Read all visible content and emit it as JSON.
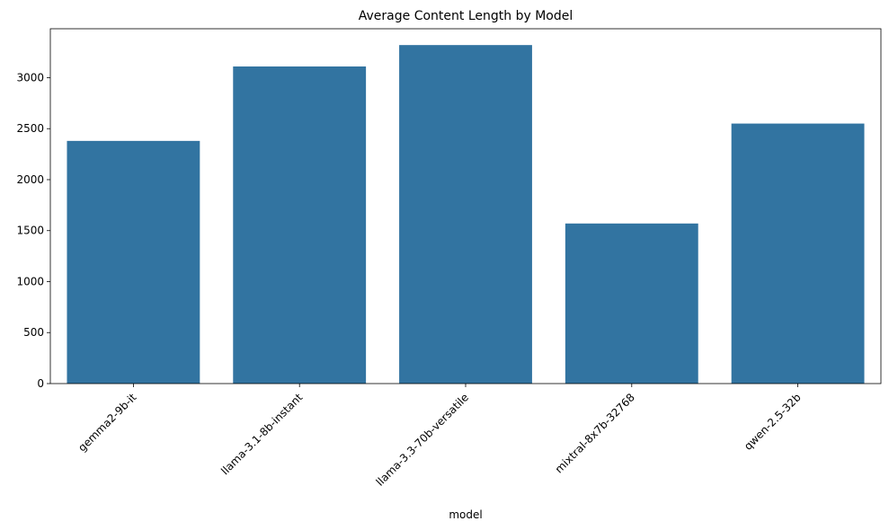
{
  "chart_data": {
    "type": "bar",
    "title": "Average Content Length by Model",
    "xlabel": "model",
    "ylabel": "",
    "categories": [
      "gemma2-9b-it",
      "llama-3.1-8b-instant",
      "llama-3.3-70b-versatile",
      "mixtral-8x7b-32768",
      "qwen-2.5-32b"
    ],
    "values": [
      2380,
      3110,
      3320,
      1570,
      2550
    ],
    "ylim": [
      0,
      3480
    ],
    "yticks": [
      0,
      500,
      1000,
      1500,
      2000,
      2500,
      3000
    ],
    "ytick_labels": [
      "0",
      "500",
      "1000",
      "1500",
      "2000",
      "2500",
      "3000"
    ],
    "bar_color": "#3274a1",
    "grid": false,
    "legend": "none"
  }
}
